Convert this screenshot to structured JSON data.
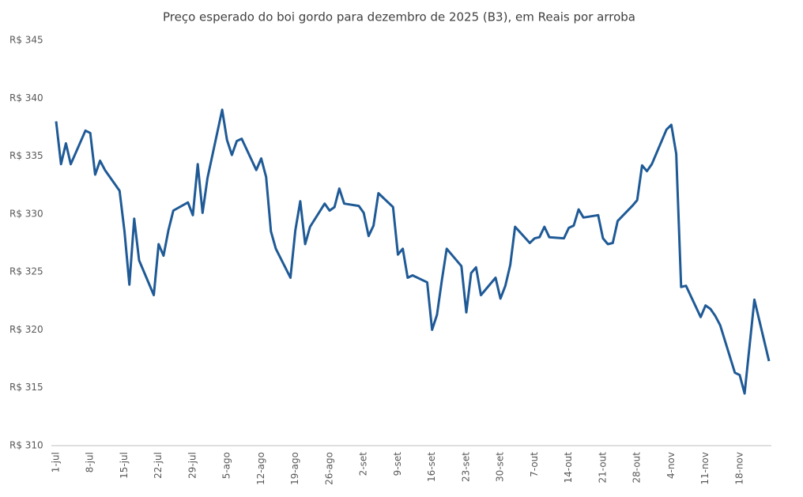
{
  "chart_data": {
    "type": "line",
    "title": "Preço esperado do boi gordo para dezembro de 2025 (B3), em Reais por arroba",
    "x": [
      "1-jul",
      "2-jul",
      "3-jul",
      "4-jul",
      "7-jul",
      "8-jul",
      "9-jul",
      "10-jul",
      "11-jul",
      "14-jul",
      "15-jul",
      "16-jul",
      "17-jul",
      "18-jul",
      "21-jul",
      "22-jul",
      "23-jul",
      "24-jul",
      "25-jul",
      "28-jul",
      "29-jul",
      "30-jul",
      "31-jul",
      "1-ago",
      "4-ago",
      "5-ago",
      "6-ago",
      "7-ago",
      "8-ago",
      "11-ago",
      "12-ago",
      "13-ago",
      "14-ago",
      "15-ago",
      "18-ago",
      "19-ago",
      "20-ago",
      "21-ago",
      "22-ago",
      "25-ago",
      "26-ago",
      "27-ago",
      "28-ago",
      "29-ago",
      "1-set",
      "2-set",
      "3-set",
      "4-set",
      "5-set",
      "8-set",
      "9-set",
      "10-set",
      "11-set",
      "12-set",
      "15-set",
      "16-set",
      "17-set",
      "18-set",
      "19-set",
      "22-set",
      "23-set",
      "24-set",
      "25-set",
      "26-set",
      "29-set",
      "30-set",
      "1-out",
      "2-out",
      "3-out",
      "6-out",
      "7-out",
      "8-out",
      "9-out",
      "10-out",
      "13-out",
      "14-out",
      "15-out",
      "16-out",
      "17-out",
      "20-out",
      "21-out",
      "22-out",
      "23-out",
      "24-out",
      "27-out",
      "28-out",
      "29-out",
      "30-out",
      "31-out",
      "3-nov",
      "4-nov",
      "5-nov",
      "6-nov",
      "7-nov",
      "10-nov",
      "11-nov",
      "12-nov",
      "13-nov",
      "14-nov",
      "17-nov",
      "18-nov",
      "19-nov",
      "21-nov",
      "24-nov"
    ],
    "series": [
      {
        "name": "Preço",
        "color": "#1f5a96",
        "values": [
          338.0,
          334.3,
          336.1,
          334.3,
          337.2,
          337.0,
          333.4,
          334.6,
          333.8,
          332.0,
          328.5,
          323.9,
          329.6,
          326.0,
          323.0,
          327.4,
          326.4,
          328.6,
          330.3,
          331.0,
          329.9,
          334.3,
          330.1,
          333.1,
          339.0,
          336.4,
          335.1,
          336.3,
          336.5,
          333.8,
          334.8,
          333.2,
          328.5,
          327.0,
          324.5,
          328.6,
          331.1,
          327.4,
          328.9,
          330.9,
          330.3,
          330.6,
          332.2,
          330.9,
          330.7,
          330.1,
          328.1,
          329.0,
          331.8,
          330.6,
          326.5,
          327.0,
          324.5,
          324.7,
          324.1,
          320.0,
          321.3,
          324.3,
          327.0,
          325.5,
          321.5,
          324.9,
          325.4,
          323.0,
          324.5,
          322.7,
          323.8,
          325.6,
          328.9,
          327.5,
          327.9,
          328.0,
          328.9,
          328.0,
          327.9,
          328.8,
          329.0,
          330.4,
          329.7,
          329.9,
          327.9,
          327.4,
          327.5,
          329.4,
          330.7,
          331.2,
          334.2,
          333.7,
          334.3,
          337.3,
          337.7,
          335.2,
          323.7,
          323.8,
          321.1,
          322.1,
          321.8,
          321.2,
          320.4,
          316.3,
          316.1,
          314.5,
          322.6,
          317.3
        ]
      }
    ],
    "xlim": [
      "1-jul",
      "24-nov"
    ],
    "xticks": [
      "1-jul",
      "8-jul",
      "15-jul",
      "22-jul",
      "29-jul",
      "5-ago",
      "12-ago",
      "19-ago",
      "26-ago",
      "2-set",
      "9-set",
      "16-set",
      "23-set",
      "30-set",
      "7-out",
      "14-out",
      "21-out",
      "28-out",
      "4-nov",
      "11-nov",
      "18-nov"
    ],
    "ylim": [
      310,
      345
    ],
    "yticks": [
      {
        "value": 310,
        "label": "R$ 310"
      },
      {
        "value": 315,
        "label": "R$ 315"
      },
      {
        "value": 320,
        "label": "R$ 320"
      },
      {
        "value": 325,
        "label": "R$ 325"
      },
      {
        "value": 330,
        "label": "R$ 330"
      },
      {
        "value": 335,
        "label": "R$ 335"
      },
      {
        "value": 340,
        "label": "R$ 340"
      },
      {
        "value": 345,
        "label": "R$ 345"
      }
    ],
    "grid": false
  }
}
